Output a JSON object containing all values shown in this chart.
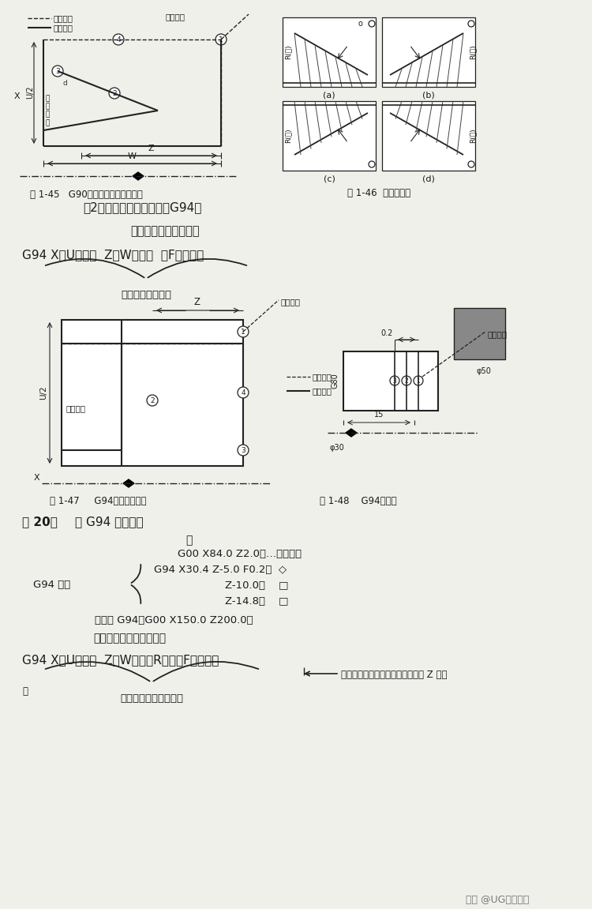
{
  "bg_color": "#f0f0eb",
  "text_color": "#1a1a1a",
  "line_color": "#222222",
  "fig145_caption": "图 1-45   G90指令切削锥面循环动作",
  "fig146_caption": "图 1-46  锥面的方向",
  "fig147_caption": "图 1-47     G94指令循环动作",
  "fig148_caption": "图 1-48    G94程序例",
  "legend_dash": "快速进给",
  "legend_solid": "切削进给",
  "loop_start": "循环起点",
  "heading1": "（2）端面切削循环指令（G94）",
  "heading2": "切削直端面输入格式：",
  "formula1": "G94 X（U）＿＿  Z（W）＿＿  （F＿＿）；",
  "brace1_label": "端面切削终点坐标",
  "ex_heading_bold": "例 20：",
  "ex_heading": "用 G94 指令编程",
  "ex_colon": "：",
  "ex_line1": "G00 X84.0 Z2.0；…循环起点",
  "ex_line2": "G94 X30.4 Z-5.0 F0.2；  ◇",
  "ex_line3": "Z-10.0；    □",
  "ex_line4": "Z-14.8；    □",
  "ex_line5": "（取消 G94）G00 X150.0 Z200.0；",
  "ex_line6": "切削锥度端面输入格式：",
  "g94_mode": "G94 模式",
  "formula2": "G94 X（U）＿＿  Z（W）＿＿R＿＿（F＿＿）；",
  "brace2_label": "锥度端面切削终点坐标",
  "arrow2_label1": "刀具切削锥面的切出点至切入点在 Z 向位",
  "arrow2_label2": "移",
  "watermark": "头条 @UG编程少白"
}
